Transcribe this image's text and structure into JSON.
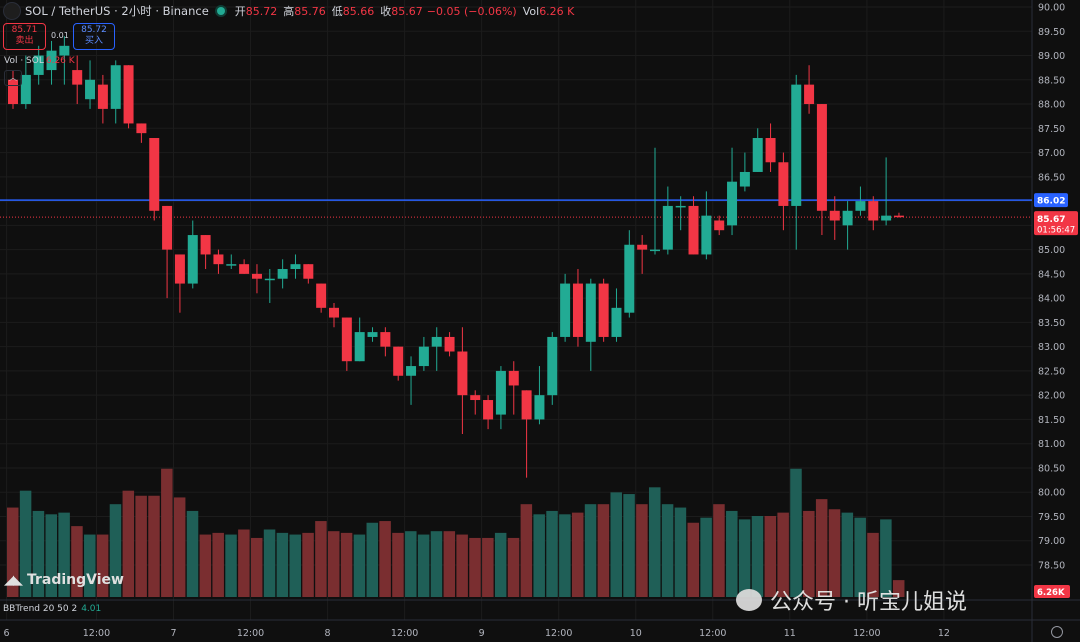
{
  "header": {
    "symbol": "SOL / TetherUS · 2小时 · Binance",
    "open_label": "开",
    "open": "85.72",
    "high_label": "高",
    "high": "85.76",
    "low_label": "低",
    "low": "85.66",
    "close_label": "收",
    "close": "85.67",
    "change": "−0.05 (−0.06%)",
    "vol_label": "Vol",
    "vol": "6.26 K"
  },
  "trade": {
    "sell_price": "85.71",
    "sell_label": "卖出",
    "spread": "0.01",
    "buy_price": "85.72",
    "buy_label": "买入"
  },
  "volume_legend": {
    "label": "Vol · SOL",
    "value": "6.26 K"
  },
  "indicator": {
    "label": "BBTrend 20 50 2",
    "value": "4.01"
  },
  "branding": {
    "tradingview": "TradingView",
    "watermark": "公众号 · 听宝儿姐说"
  },
  "colors": {
    "up": "#22ab94",
    "down": "#f23645",
    "line": "#2962ff",
    "bg": "#0f0f0f",
    "grid": "#1c1c1c"
  },
  "chart_data": {
    "type": "candlestick",
    "yaxis": {
      "min": 78.5,
      "max": 90.0,
      "ticks": [
        "78.50",
        "79.00",
        "79.50",
        "80.00",
        "80.50",
        "81.00",
        "81.50",
        "82.00",
        "82.50",
        "83.00",
        "83.50",
        "84.00",
        "84.50",
        "85.00",
        "85.50",
        "86.00",
        "86.50",
        "87.00",
        "87.50",
        "88.00",
        "88.50",
        "89.00",
        "89.50",
        "90.00"
      ]
    },
    "xaxis_ticks": [
      {
        "label": "6",
        "i": -0.5
      },
      {
        "label": "12:00",
        "i": 6.5
      },
      {
        "label": "7",
        "i": 12.5
      },
      {
        "label": "12:00",
        "i": 18.5
      },
      {
        "label": "8",
        "i": 24.5
      },
      {
        "label": "12:00",
        "i": 30.5
      },
      {
        "label": "9",
        "i": 36.5
      },
      {
        "label": "12:00",
        "i": 42.5
      },
      {
        "label": "10",
        "i": 48.5
      },
      {
        "label": "12:00",
        "i": 54.5
      },
      {
        "label": "11",
        "i": 60.5
      },
      {
        "label": "12:00",
        "i": 66.5
      },
      {
        "label": "12",
        "i": 72.5
      }
    ],
    "hline": {
      "value": 86.02,
      "label": "86.02"
    },
    "last_price": {
      "value": 85.67,
      "label": "85.67",
      "countdown": "01:56:47"
    },
    "vol_tag": "6.26K",
    "candles": [
      [
        88.5,
        88.0,
        88.7,
        87.9
      ],
      [
        88.0,
        88.6,
        89.0,
        87.9
      ],
      [
        88.6,
        89.0,
        89.2,
        88.4
      ],
      [
        88.7,
        89.1,
        89.3,
        88.4
      ],
      [
        89.0,
        89.2,
        89.4,
        88.4
      ],
      [
        88.7,
        88.4,
        89.0,
        88.0
      ],
      [
        88.1,
        88.5,
        88.9,
        87.9
      ],
      [
        88.4,
        87.9,
        88.6,
        87.6
      ],
      [
        87.9,
        88.8,
        88.9,
        87.6
      ],
      [
        88.8,
        87.6,
        88.8,
        87.5
      ],
      [
        87.6,
        87.4,
        87.6,
        87.2
      ],
      [
        87.3,
        85.8,
        87.3,
        85.6
      ],
      [
        85.9,
        85.0,
        85.9,
        84.0
      ],
      [
        84.9,
        84.3,
        84.9,
        83.7
      ],
      [
        84.3,
        85.3,
        85.6,
        84.2
      ],
      [
        85.3,
        84.9,
        85.3,
        84.6
      ],
      [
        84.9,
        84.7,
        85.0,
        84.5
      ],
      [
        84.7,
        84.7,
        84.9,
        84.6
      ],
      [
        84.7,
        84.5,
        84.8,
        84.5
      ],
      [
        84.5,
        84.4,
        84.7,
        84.1
      ],
      [
        84.4,
        84.4,
        84.6,
        83.9
      ],
      [
        84.4,
        84.6,
        84.8,
        84.2
      ],
      [
        84.6,
        84.7,
        84.9,
        84.4
      ],
      [
        84.7,
        84.4,
        84.7,
        84.3
      ],
      [
        84.3,
        83.8,
        84.3,
        83.7
      ],
      [
        83.8,
        83.6,
        83.9,
        83.4
      ],
      [
        83.6,
        82.7,
        83.6,
        82.5
      ],
      [
        82.7,
        83.3,
        83.6,
        82.7
      ],
      [
        83.2,
        83.3,
        83.4,
        83.1
      ],
      [
        83.3,
        83.0,
        83.4,
        82.8
      ],
      [
        83.0,
        82.4,
        83.0,
        82.3
      ],
      [
        82.4,
        82.6,
        82.8,
        81.8
      ],
      [
        82.6,
        83.0,
        83.2,
        82.5
      ],
      [
        83.0,
        83.2,
        83.4,
        82.5
      ],
      [
        83.2,
        82.9,
        83.3,
        82.8
      ],
      [
        82.9,
        82.0,
        83.4,
        81.2
      ],
      [
        82.0,
        81.9,
        82.1,
        81.6
      ],
      [
        81.9,
        81.5,
        82.0,
        81.3
      ],
      [
        81.6,
        82.5,
        82.6,
        81.3
      ],
      [
        82.5,
        82.2,
        82.7,
        81.6
      ],
      [
        82.1,
        81.5,
        82.1,
        80.3
      ],
      [
        81.5,
        82.0,
        82.6,
        81.4
      ],
      [
        82.0,
        83.2,
        83.3,
        81.8
      ],
      [
        83.2,
        84.3,
        84.5,
        83.1
      ],
      [
        84.3,
        83.2,
        84.6,
        83.0
      ],
      [
        83.1,
        84.3,
        84.4,
        82.5
      ],
      [
        84.3,
        83.2,
        84.4,
        83.1
      ],
      [
        83.2,
        83.8,
        84.2,
        83.1
      ],
      [
        83.7,
        85.1,
        85.4,
        83.6
      ],
      [
        85.1,
        85.0,
        85.3,
        84.5
      ],
      [
        85.0,
        85.0,
        87.1,
        84.9
      ],
      [
        85.0,
        85.9,
        86.3,
        84.9
      ],
      [
        85.9,
        85.9,
        86.1,
        85.4
      ],
      [
        85.9,
        84.9,
        86.1,
        84.9
      ],
      [
        84.9,
        85.7,
        86.2,
        84.8
      ],
      [
        85.6,
        85.4,
        85.7,
        85.3
      ],
      [
        85.5,
        86.4,
        87.1,
        85.3
      ],
      [
        86.3,
        86.6,
        87.0,
        86.2
      ],
      [
        86.6,
        87.3,
        87.5,
        86.6
      ],
      [
        87.3,
        86.8,
        87.6,
        86.6
      ],
      [
        86.8,
        85.9,
        87.0,
        85.4
      ],
      [
        85.9,
        88.4,
        88.6,
        85.0
      ],
      [
        88.4,
        88.0,
        88.8,
        87.8
      ],
      [
        88.0,
        85.8,
        88.0,
        85.3
      ],
      [
        85.8,
        85.6,
        86.1,
        85.2
      ],
      [
        85.5,
        85.8,
        86.0,
        85.0
      ],
      [
        85.8,
        86.0,
        86.3,
        85.7
      ],
      [
        86.0,
        85.6,
        86.1,
        85.4
      ],
      [
        85.6,
        85.7,
        86.9,
        85.5
      ],
      [
        85.7,
        85.67,
        85.76,
        85.66
      ]
    ],
    "volume": [
      5.3,
      6.3,
      5.1,
      4.9,
      5.0,
      4.2,
      3.7,
      3.7,
      5.5,
      6.3,
      6.0,
      6.0,
      7.6,
      5.9,
      5.1,
      3.7,
      3.8,
      3.7,
      4.0,
      3.5,
      4.0,
      3.8,
      3.7,
      3.8,
      4.5,
      3.9,
      3.8,
      3.7,
      4.4,
      4.5,
      3.8,
      3.9,
      3.7,
      3.9,
      3.9,
      3.7,
      3.5,
      3.5,
      3.8,
      3.5,
      5.5,
      4.9,
      5.1,
      4.9,
      5.0,
      5.5,
      5.5,
      6.2,
      6.1,
      5.5,
      6.5,
      5.5,
      5.3,
      4.4,
      4.7,
      5.5,
      5.1,
      4.6,
      4.8,
      4.8,
      5.0,
      7.6,
      5.1,
      5.8,
      5.2,
      5.0,
      4.7,
      3.8,
      4.6,
      1.0
    ],
    "volume_max": 8.0
  }
}
